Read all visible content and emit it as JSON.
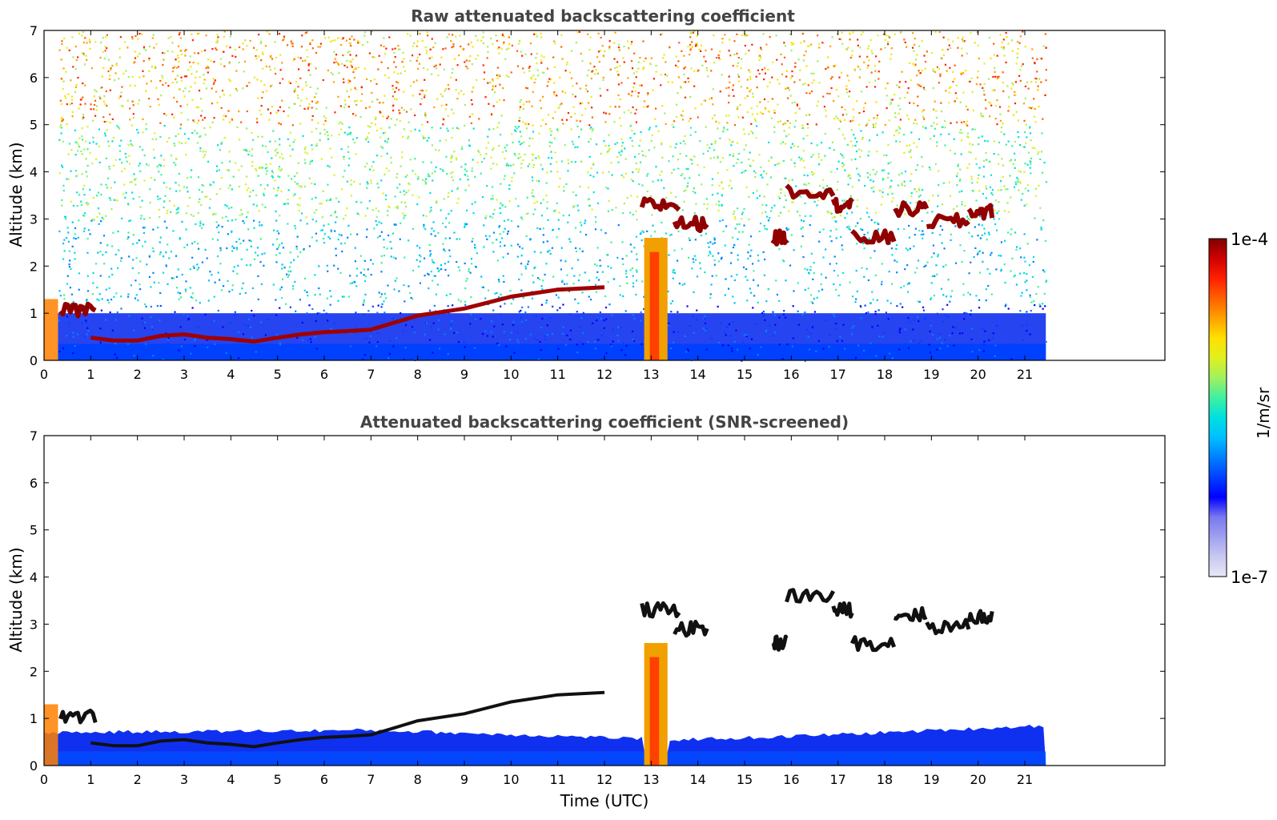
{
  "chart_data": [
    {
      "type": "heatmap",
      "title": "Raw attenuated backscattering coefficient",
      "xlabel": "",
      "ylabel": "Altitude (km)",
      "xlim": [
        0,
        24
      ],
      "ylim": [
        0,
        7
      ],
      "xticks": [
        "0",
        "1",
        "2",
        "3",
        "4",
        "5",
        "6",
        "7",
        "8",
        "9",
        "10",
        "11",
        "12",
        "13",
        "14",
        "15",
        "16",
        "17",
        "18",
        "19",
        "20",
        "21"
      ],
      "yticks": [
        "0",
        "1",
        "2",
        "3",
        "4",
        "5",
        "6",
        "7"
      ],
      "data_end_time": 21.45,
      "boundary_layer_altitude": [
        [
          1,
          0.48
        ],
        [
          1.5,
          0.42
        ],
        [
          2,
          0.42
        ],
        [
          2.5,
          0.52
        ],
        [
          3,
          0.55
        ],
        [
          3.5,
          0.48
        ],
        [
          4,
          0.45
        ],
        [
          4.5,
          0.4
        ],
        [
          5,
          0.48
        ],
        [
          5.5,
          0.55
        ],
        [
          6,
          0.6
        ],
        [
          6.5,
          0.62
        ],
        [
          7,
          0.65
        ],
        [
          7.5,
          0.8
        ],
        [
          8,
          0.95
        ],
        [
          9,
          1.1
        ],
        [
          10,
          1.35
        ],
        [
          11,
          1.5
        ],
        [
          12,
          1.55
        ]
      ],
      "cloud_layers": [
        {
          "t0": 0.35,
          "t1": 1.1,
          "alt": 1.05
        },
        {
          "t0": 12.8,
          "t1": 13.6,
          "alt": 3.3
        },
        {
          "t0": 13.5,
          "t1": 14.2,
          "alt": 2.9
        },
        {
          "t0": 15.6,
          "t1": 15.9,
          "alt": 2.6
        },
        {
          "t0": 15.9,
          "t1": 16.9,
          "alt": 3.6
        },
        {
          "t0": 16.9,
          "t1": 17.3,
          "alt": 3.3
        },
        {
          "t0": 17.3,
          "t1": 18.2,
          "alt": 2.6
        },
        {
          "t0": 18.2,
          "t1": 18.9,
          "alt": 3.2
        },
        {
          "t0": 18.9,
          "t1": 19.8,
          "alt": 2.95
        },
        {
          "t0": 19.8,
          "t1": 20.3,
          "alt": 3.15
        }
      ],
      "precipitation_event": {
        "t0": 12.85,
        "t1": 13.35,
        "top_alt": 2.6
      }
    },
    {
      "type": "heatmap",
      "title": "Attenuated backscattering coefficient (SNR-screened)",
      "xlabel": "Time (UTC)",
      "ylabel": "Altitude (km)",
      "xlim": [
        0,
        24
      ],
      "ylim": [
        0,
        7
      ],
      "xticks": [
        "0",
        "1",
        "2",
        "3",
        "4",
        "5",
        "6",
        "7",
        "8",
        "9",
        "10",
        "11",
        "12",
        "13",
        "14",
        "15",
        "16",
        "17",
        "18",
        "19",
        "20",
        "21"
      ],
      "yticks": [
        "0",
        "1",
        "2",
        "3",
        "4",
        "5",
        "6",
        "7"
      ],
      "data_end_time": 21.45,
      "screened_layer_top": [
        [
          0,
          0.7
        ],
        [
          7,
          0.75
        ],
        [
          13.5,
          0.55
        ],
        [
          15.5,
          0.6
        ],
        [
          18,
          0.7
        ],
        [
          21.45,
          0.85
        ]
      ]
    }
  ],
  "colorbar": {
    "max_label": "1e-4",
    "min_label": "1e-7",
    "unit_label": "1/m/sr",
    "colors": [
      "#e8e8f8",
      "#c8c8f0",
      "#a0a0f0",
      "#7878f0",
      "#0000ff",
      "#0040ff",
      "#0080ff",
      "#00c0ff",
      "#00e0e0",
      "#40f0a0",
      "#a0f060",
      "#e0f020",
      "#ffe000",
      "#ffa000",
      "#ff6000",
      "#ff2000",
      "#d00000",
      "#800000"
    ]
  }
}
